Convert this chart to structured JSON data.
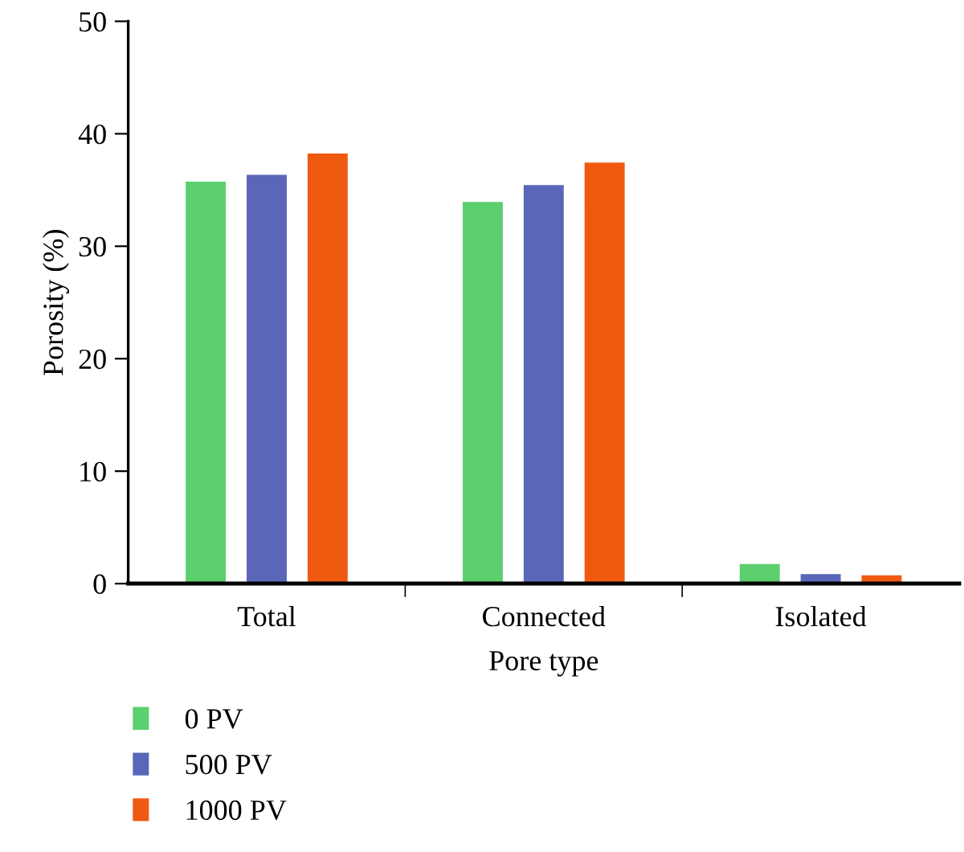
{
  "chart_data": {
    "type": "bar",
    "xlabel": "Pore type",
    "ylabel": "Porosity (%)",
    "categories": [
      "Total",
      "Connected",
      "Isolated"
    ],
    "series": [
      {
        "name": "0 PV",
        "color": "#5ccf6e",
        "values": [
          35.8,
          34.0,
          1.8
        ]
      },
      {
        "name": "500 PV",
        "color": "#5a67b8",
        "values": [
          36.4,
          35.5,
          0.9
        ]
      },
      {
        "name": "1000 PV",
        "color": "#f05a10",
        "values": [
          38.3,
          37.5,
          0.8
        ]
      }
    ],
    "ylim": [
      0,
      50
    ],
    "yticks": [
      0,
      10,
      20,
      30,
      40,
      50
    ],
    "grid": false,
    "legend": "bottom left"
  }
}
